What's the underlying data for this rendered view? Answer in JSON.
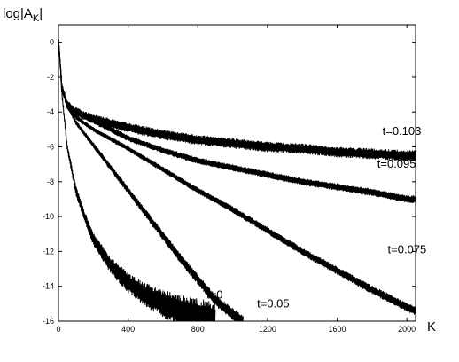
{
  "chart_data": {
    "type": "line",
    "title": "",
    "xlabel": "K",
    "ylabel": "log|A_K|",
    "ylabel_main": "log|A",
    "ylabel_sub": "K",
    "ylabel_end": "|",
    "xlim": [
      0,
      2050
    ],
    "ylim": [
      -16,
      1
    ],
    "xticks": [
      0,
      400,
      800,
      1200,
      1600,
      2000
    ],
    "yticks": [
      0,
      -2,
      -4,
      -6,
      -8,
      -10,
      -12,
      -14,
      -16
    ],
    "grid": false,
    "line_color": "#000000",
    "series": [
      {
        "name": "t=0",
        "label_at": [
          850,
          -14.7
        ],
        "points": [
          [
            0,
            0.2
          ],
          [
            20,
            -3.0
          ],
          [
            50,
            -6.0
          ],
          [
            100,
            -8.5
          ],
          [
            150,
            -10.0
          ],
          [
            200,
            -11.3
          ],
          [
            300,
            -12.8
          ],
          [
            400,
            -13.8
          ],
          [
            500,
            -14.5
          ],
          [
            600,
            -15.0
          ],
          [
            700,
            -15.4
          ],
          [
            800,
            -15.7
          ],
          [
            900,
            -16.0
          ]
        ],
        "oscillation": [
          0.15,
          1.1
        ]
      },
      {
        "name": "t=0.05",
        "label_at": [
          1140,
          -15.2
        ],
        "points": [
          [
            0,
            0.2
          ],
          [
            20,
            -2.5
          ],
          [
            50,
            -3.6
          ],
          [
            100,
            -4.6
          ],
          [
            200,
            -5.9
          ],
          [
            300,
            -7.2
          ],
          [
            400,
            -8.5
          ],
          [
            500,
            -9.8
          ],
          [
            600,
            -11.1
          ],
          [
            700,
            -12.4
          ],
          [
            800,
            -13.6
          ],
          [
            900,
            -14.8
          ],
          [
            1000,
            -15.6
          ],
          [
            1060,
            -16.0
          ]
        ],
        "oscillation": [
          0.1,
          0.35
        ]
      },
      {
        "name": "t=0.075",
        "label_at": [
          1890,
          -12.1
        ],
        "points": [
          [
            0,
            0.2
          ],
          [
            20,
            -2.5
          ],
          [
            50,
            -3.7
          ],
          [
            100,
            -4.3
          ],
          [
            200,
            -5.0
          ],
          [
            400,
            -6.1
          ],
          [
            600,
            -7.3
          ],
          [
            800,
            -8.5
          ],
          [
            1000,
            -9.6
          ],
          [
            1200,
            -10.8
          ],
          [
            1400,
            -12.0
          ],
          [
            1600,
            -13.1
          ],
          [
            1800,
            -14.2
          ],
          [
            2000,
            -15.2
          ],
          [
            2050,
            -15.4
          ]
        ],
        "oscillation": [
          0.1,
          0.25
        ]
      },
      {
        "name": "t=0.095",
        "label_at": [
          1830,
          -7.2
        ],
        "points": [
          [
            0,
            0.2
          ],
          [
            20,
            -2.6
          ],
          [
            50,
            -3.6
          ],
          [
            100,
            -4.0
          ],
          [
            200,
            -4.5
          ],
          [
            400,
            -5.5
          ],
          [
            600,
            -6.2
          ],
          [
            800,
            -6.8
          ],
          [
            1000,
            -7.2
          ],
          [
            1200,
            -7.6
          ],
          [
            1400,
            -8.0
          ],
          [
            1600,
            -8.3
          ],
          [
            1800,
            -8.6
          ],
          [
            2000,
            -9.0
          ],
          [
            2050,
            -9.0
          ]
        ],
        "oscillation": [
          0.15,
          0.2
        ]
      },
      {
        "name": "t=0.103",
        "label_at": [
          1860,
          -5.3
        ],
        "points": [
          [
            0,
            0.2
          ],
          [
            20,
            -2.6
          ],
          [
            50,
            -3.6
          ],
          [
            100,
            -4.0
          ],
          [
            200,
            -4.4
          ],
          [
            400,
            -4.9
          ],
          [
            600,
            -5.3
          ],
          [
            800,
            -5.6
          ],
          [
            1000,
            -5.8
          ],
          [
            1200,
            -6.0
          ],
          [
            1400,
            -6.1
          ],
          [
            1600,
            -6.3
          ],
          [
            1800,
            -6.4
          ],
          [
            2000,
            -6.5
          ],
          [
            2050,
            -6.5
          ]
        ],
        "oscillation": [
          0.25,
          0.3
        ]
      }
    ]
  }
}
